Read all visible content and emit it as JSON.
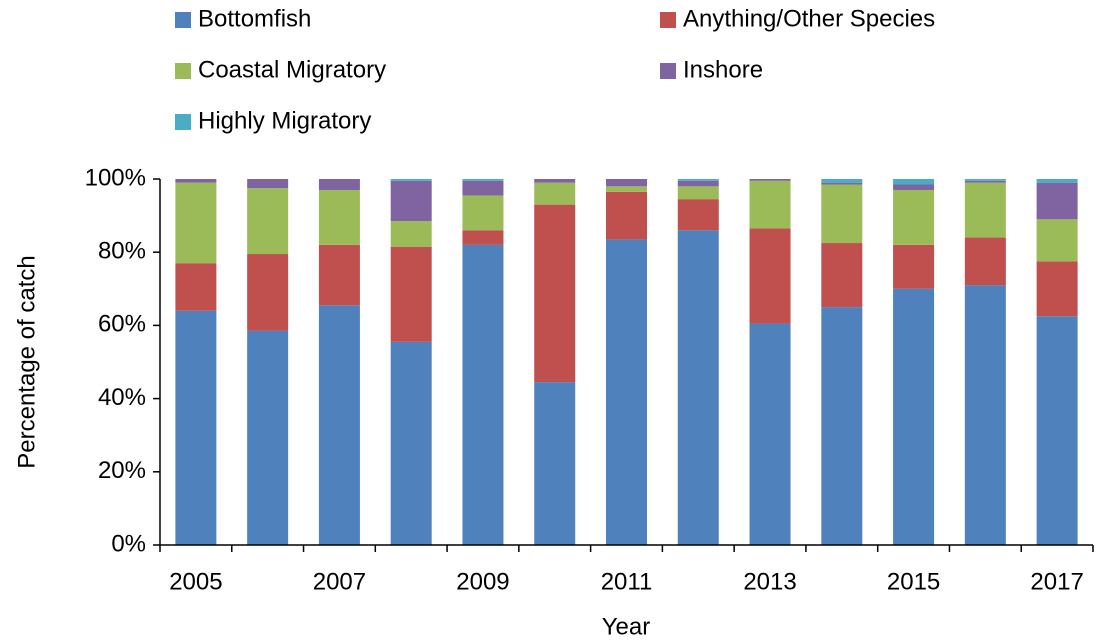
{
  "chart_data": {
    "type": "stacked_bar",
    "x_label": "Year",
    "y_label": "Percentage of catch",
    "categories": [
      "2005",
      null,
      "2007",
      null,
      "2009",
      null,
      "2011",
      null,
      "2013",
      null,
      "2015",
      null,
      "2017"
    ],
    "series": [
      {
        "name": "Bottomfish",
        "color": "#4f81bd",
        "values": [
          64,
          58.5,
          65.5,
          55.5,
          82,
          44.5,
          83.5,
          86,
          60.5,
          65,
          70,
          71,
          62.5
        ]
      },
      {
        "name": "Anything/Other Species",
        "color": "#c0504d",
        "values": [
          13,
          21,
          16.5,
          26,
          4,
          48.5,
          13,
          8.5,
          26,
          17.5,
          12,
          13,
          15
        ]
      },
      {
        "name": "Coastal Migratory",
        "color": "#9bbb59",
        "values": [
          22,
          18,
          15,
          7,
          9.5,
          6,
          1.5,
          3.5,
          13,
          16,
          15,
          15,
          11.5
        ]
      },
      {
        "name": "Inshore",
        "color": "#8064a2",
        "values": [
          1,
          2.5,
          3,
          11,
          4,
          1,
          2,
          1.5,
          0.5,
          0.5,
          1.5,
          0.5,
          10
        ]
      },
      {
        "name": "Highly Migratory",
        "color": "#4bacc6",
        "values": [
          0,
          0,
          0,
          0.5,
          0.5,
          0,
          0,
          0.5,
          0,
          1,
          1.5,
          0.5,
          1
        ]
      }
    ],
    "ylim": [
      0,
      100
    ],
    "yticks": [
      {
        "value": 0,
        "label": "0%"
      },
      {
        "value": 20,
        "label": "20%"
      },
      {
        "value": 40,
        "label": "40%"
      },
      {
        "value": 60,
        "label": "60%"
      },
      {
        "value": 80,
        "label": "80%"
      },
      {
        "value": 100,
        "label": "100%"
      }
    ]
  }
}
